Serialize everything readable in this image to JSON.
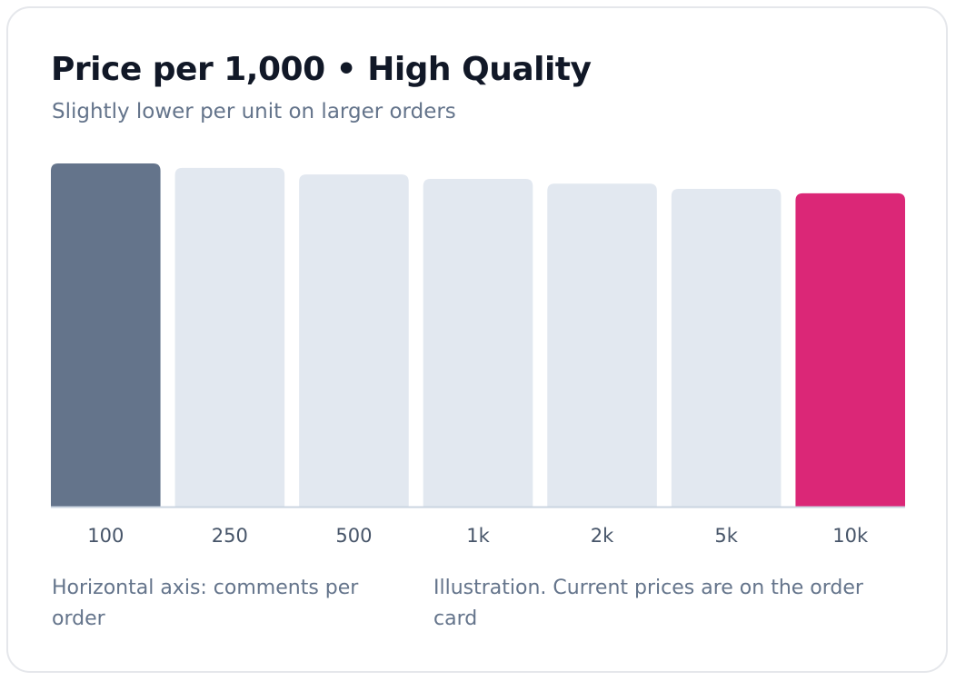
{
  "title": "Price per 1,000 • High Quality",
  "subtitle": "Slightly lower per unit on larger orders",
  "notes": {
    "axis": "Horizontal axis: comments per order",
    "disclaimer": "Illustration. Current prices are on the order card"
  },
  "colors": {
    "first_bar": "#64748b",
    "last_bar": "#db2777",
    "other_bars": "#e2e8f0",
    "baseline": "#cbd5e1",
    "tick_text": "#475569"
  },
  "chart_data": {
    "type": "bar",
    "title": "Price per 1,000 • High Quality",
    "subtitle": "Slightly lower per unit on larger orders",
    "xlabel": "",
    "ylabel": "",
    "categories": [
      "100",
      "250",
      "500",
      "1k",
      "2k",
      "5k",
      "10k"
    ],
    "values": [
      1.0,
      0.987,
      0.968,
      0.955,
      0.941,
      0.926,
      0.913
    ],
    "ylim": [
      0,
      1
    ],
    "grid": false,
    "legend": "none"
  }
}
